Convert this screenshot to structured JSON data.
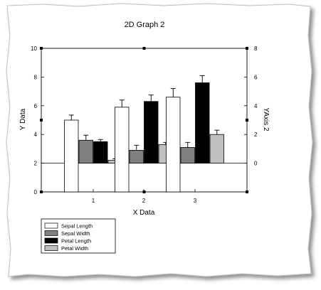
{
  "chart_data": {
    "type": "bar",
    "title": "2D Graph 2",
    "xlabel": "X Data",
    "ylabel": "Y Data",
    "y2label": "YAxis 2",
    "categories": [
      "1",
      "2",
      "3"
    ],
    "ylim": [
      0,
      10
    ],
    "y2lim": [
      0,
      8
    ],
    "yticks": [
      "0",
      "2",
      "4",
      "6",
      "8",
      "10"
    ],
    "y2ticks": [
      "0",
      "2",
      "4",
      "6",
      "8"
    ],
    "reference_line": {
      "axis": "y2",
      "value": 0
    },
    "grid": false,
    "legend": "bottom-left",
    "series": [
      {
        "name": "Sepal Length",
        "axis": "y",
        "color": "#ffffff",
        "values": [
          5.0,
          5.9,
          6.6
        ],
        "errors": [
          0.35,
          0.5,
          0.6
        ]
      },
      {
        "name": "Sepal Width",
        "axis": "y2",
        "color": "#808080",
        "values": [
          1.6,
          0.9,
          1.1
        ],
        "errors": [
          0.35,
          0.35,
          0.35
        ]
      },
      {
        "name": "Petal Length",
        "axis": "y2",
        "color": "#000000",
        "values": [
          1.5,
          4.3,
          5.6
        ],
        "errors": [
          0.15,
          0.45,
          0.5
        ]
      },
      {
        "name": "Petal Width",
        "axis": "y2",
        "color": "#c0c0c0",
        "values": [
          0.2,
          1.3,
          2.0
        ],
        "errors": [
          0.1,
          0.15,
          0.3
        ]
      }
    ]
  }
}
